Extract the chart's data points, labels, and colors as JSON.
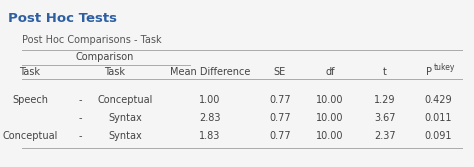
{
  "title": "Post Hoc Tests",
  "subtitle": "Post Hoc Comparisons - Task",
  "title_color": "#2E5FA3",
  "subtitle_color": "#555555",
  "header_color": "#444444",
  "row_color": "#444444",
  "bg_color": "#f5f5f5",
  "line_color": "#aaaaaa",
  "title_fontsize": 9.5,
  "subtitle_fontsize": 7,
  "header_fontsize": 7,
  "row_fontsize": 7,
  "rows": [
    [
      "Speech",
      "-",
      "Conceptual",
      "1.00",
      "0.77",
      "10.00",
      "1.29",
      "0.429"
    ],
    [
      "",
      "-",
      "Syntax",
      "2.83",
      "0.77",
      "10.00",
      "3.67",
      "0.011"
    ],
    [
      "Conceptual",
      "-",
      "Syntax",
      "1.83",
      "0.77",
      "10.00",
      "2.37",
      "0.091"
    ]
  ]
}
